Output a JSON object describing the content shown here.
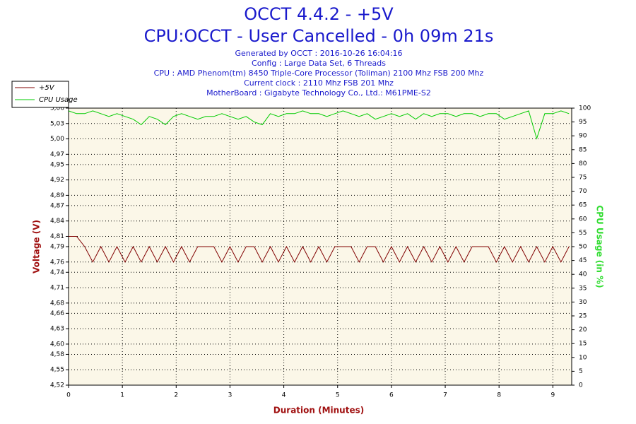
{
  "chart_data": {
    "type": "line",
    "title": "OCCT 4.4.2 - +5V",
    "subtitle": "CPU:OCCT - User Cancelled - 0h 09m 21s",
    "info": [
      "Generated by OCCT : 2016-10-26 16:04:16",
      "Config : Large Data Set, 6 Threads",
      "CPU : AMD Phenom(tm) 8450 Triple-Core Processor (Toliman) 2100 Mhz FSB 200 Mhz",
      "Current clock : 2110 Mhz FSB 201 Mhz",
      "MotherBoard : Gigabyte Technology Co., Ltd.: M61PME-S2"
    ],
    "xlabel": "Duration (Minutes)",
    "ylabel": "Voltage (V)",
    "y2label": "CPU Usage (in %)",
    "xlim": [
      0,
      9.35
    ],
    "xticks": [
      0,
      1,
      2,
      3,
      4,
      5,
      6,
      7,
      8,
      9
    ],
    "ylim": [
      4.52,
      5.06
    ],
    "yticks": [
      4.52,
      4.55,
      4.58,
      {
        "value": 4.6,
        "label": "4,60"
      },
      4.63,
      4.66,
      4.68,
      4.71,
      4.74,
      4.76,
      4.79,
      4.81,
      4.84,
      4.87,
      4.89,
      4.92,
      4.95,
      4.97,
      {
        "value": 5,
        "label": "5,00"
      },
      5.03,
      5.06
    ],
    "y2lim": [
      0,
      100
    ],
    "y2ticks": [
      0,
      5,
      10,
      15,
      20,
      25,
      30,
      35,
      40,
      45,
      50,
      55,
      60,
      65,
      70,
      75,
      80,
      85,
      90,
      95,
      100
    ],
    "decimal_comma": true,
    "grid": true,
    "legend": "top-left",
    "x": [
      0,
      0.15,
      0.3,
      0.45,
      0.6,
      0.75,
      0.9,
      1.05,
      1.2,
      1.35,
      1.5,
      1.65,
      1.8,
      1.95,
      2.1,
      2.25,
      2.4,
      2.55,
      2.7,
      2.85,
      3,
      3.15,
      3.3,
      3.45,
      3.6,
      3.75,
      3.9,
      4.05,
      4.2,
      4.35,
      4.5,
      4.65,
      4.8,
      4.95,
      5.1,
      5.25,
      5.4,
      5.55,
      5.7,
      5.85,
      6,
      6.15,
      6.3,
      6.45,
      6.6,
      6.75,
      6.9,
      7.05,
      7.2,
      7.35,
      7.5,
      7.65,
      7.8,
      7.95,
      8.1,
      8.25,
      8.4,
      8.55,
      8.7,
      8.85,
      9,
      9.15,
      9.3
    ],
    "series": [
      {
        "name": "+5V",
        "color": "#800000",
        "values": [
          4.81,
          4.81,
          4.79,
          4.76,
          4.79,
          4.76,
          4.79,
          4.76,
          4.79,
          4.76,
          4.79,
          4.76,
          4.79,
          4.76,
          4.79,
          4.76,
          4.79,
          4.79,
          4.79,
          4.76,
          4.79,
          4.76,
          4.79,
          4.79,
          4.76,
          4.79,
          4.76,
          4.79,
          4.76,
          4.79,
          4.76,
          4.79,
          4.76,
          4.79,
          4.79,
          4.79,
          4.76,
          4.79,
          4.79,
          4.76,
          4.79,
          4.76,
          4.79,
          4.76,
          4.79,
          4.76,
          4.79,
          4.76,
          4.79,
          4.76,
          4.79,
          4.79,
          4.79,
          4.76,
          4.79,
          4.76,
          4.79,
          4.76,
          4.79,
          4.76,
          4.79,
          4.76,
          4.79
        ]
      },
      {
        "name": "CPU Usage",
        "color": "#00cc00",
        "axis": "y2",
        "values": [
          99,
          98,
          98,
          99,
          98,
          97,
          98,
          97,
          96,
          94,
          97,
          96,
          94,
          97,
          98,
          97,
          96,
          97,
          97,
          98,
          97,
          96,
          97,
          95,
          94,
          98,
          97,
          98,
          98,
          99,
          98,
          98,
          97,
          98,
          99,
          98,
          97,
          98,
          96,
          97,
          98,
          97,
          98,
          96,
          98,
          97,
          98,
          98,
          97,
          98,
          98,
          97,
          98,
          98,
          96,
          97,
          98,
          99,
          89,
          98,
          98,
          99,
          98
        ]
      }
    ]
  }
}
